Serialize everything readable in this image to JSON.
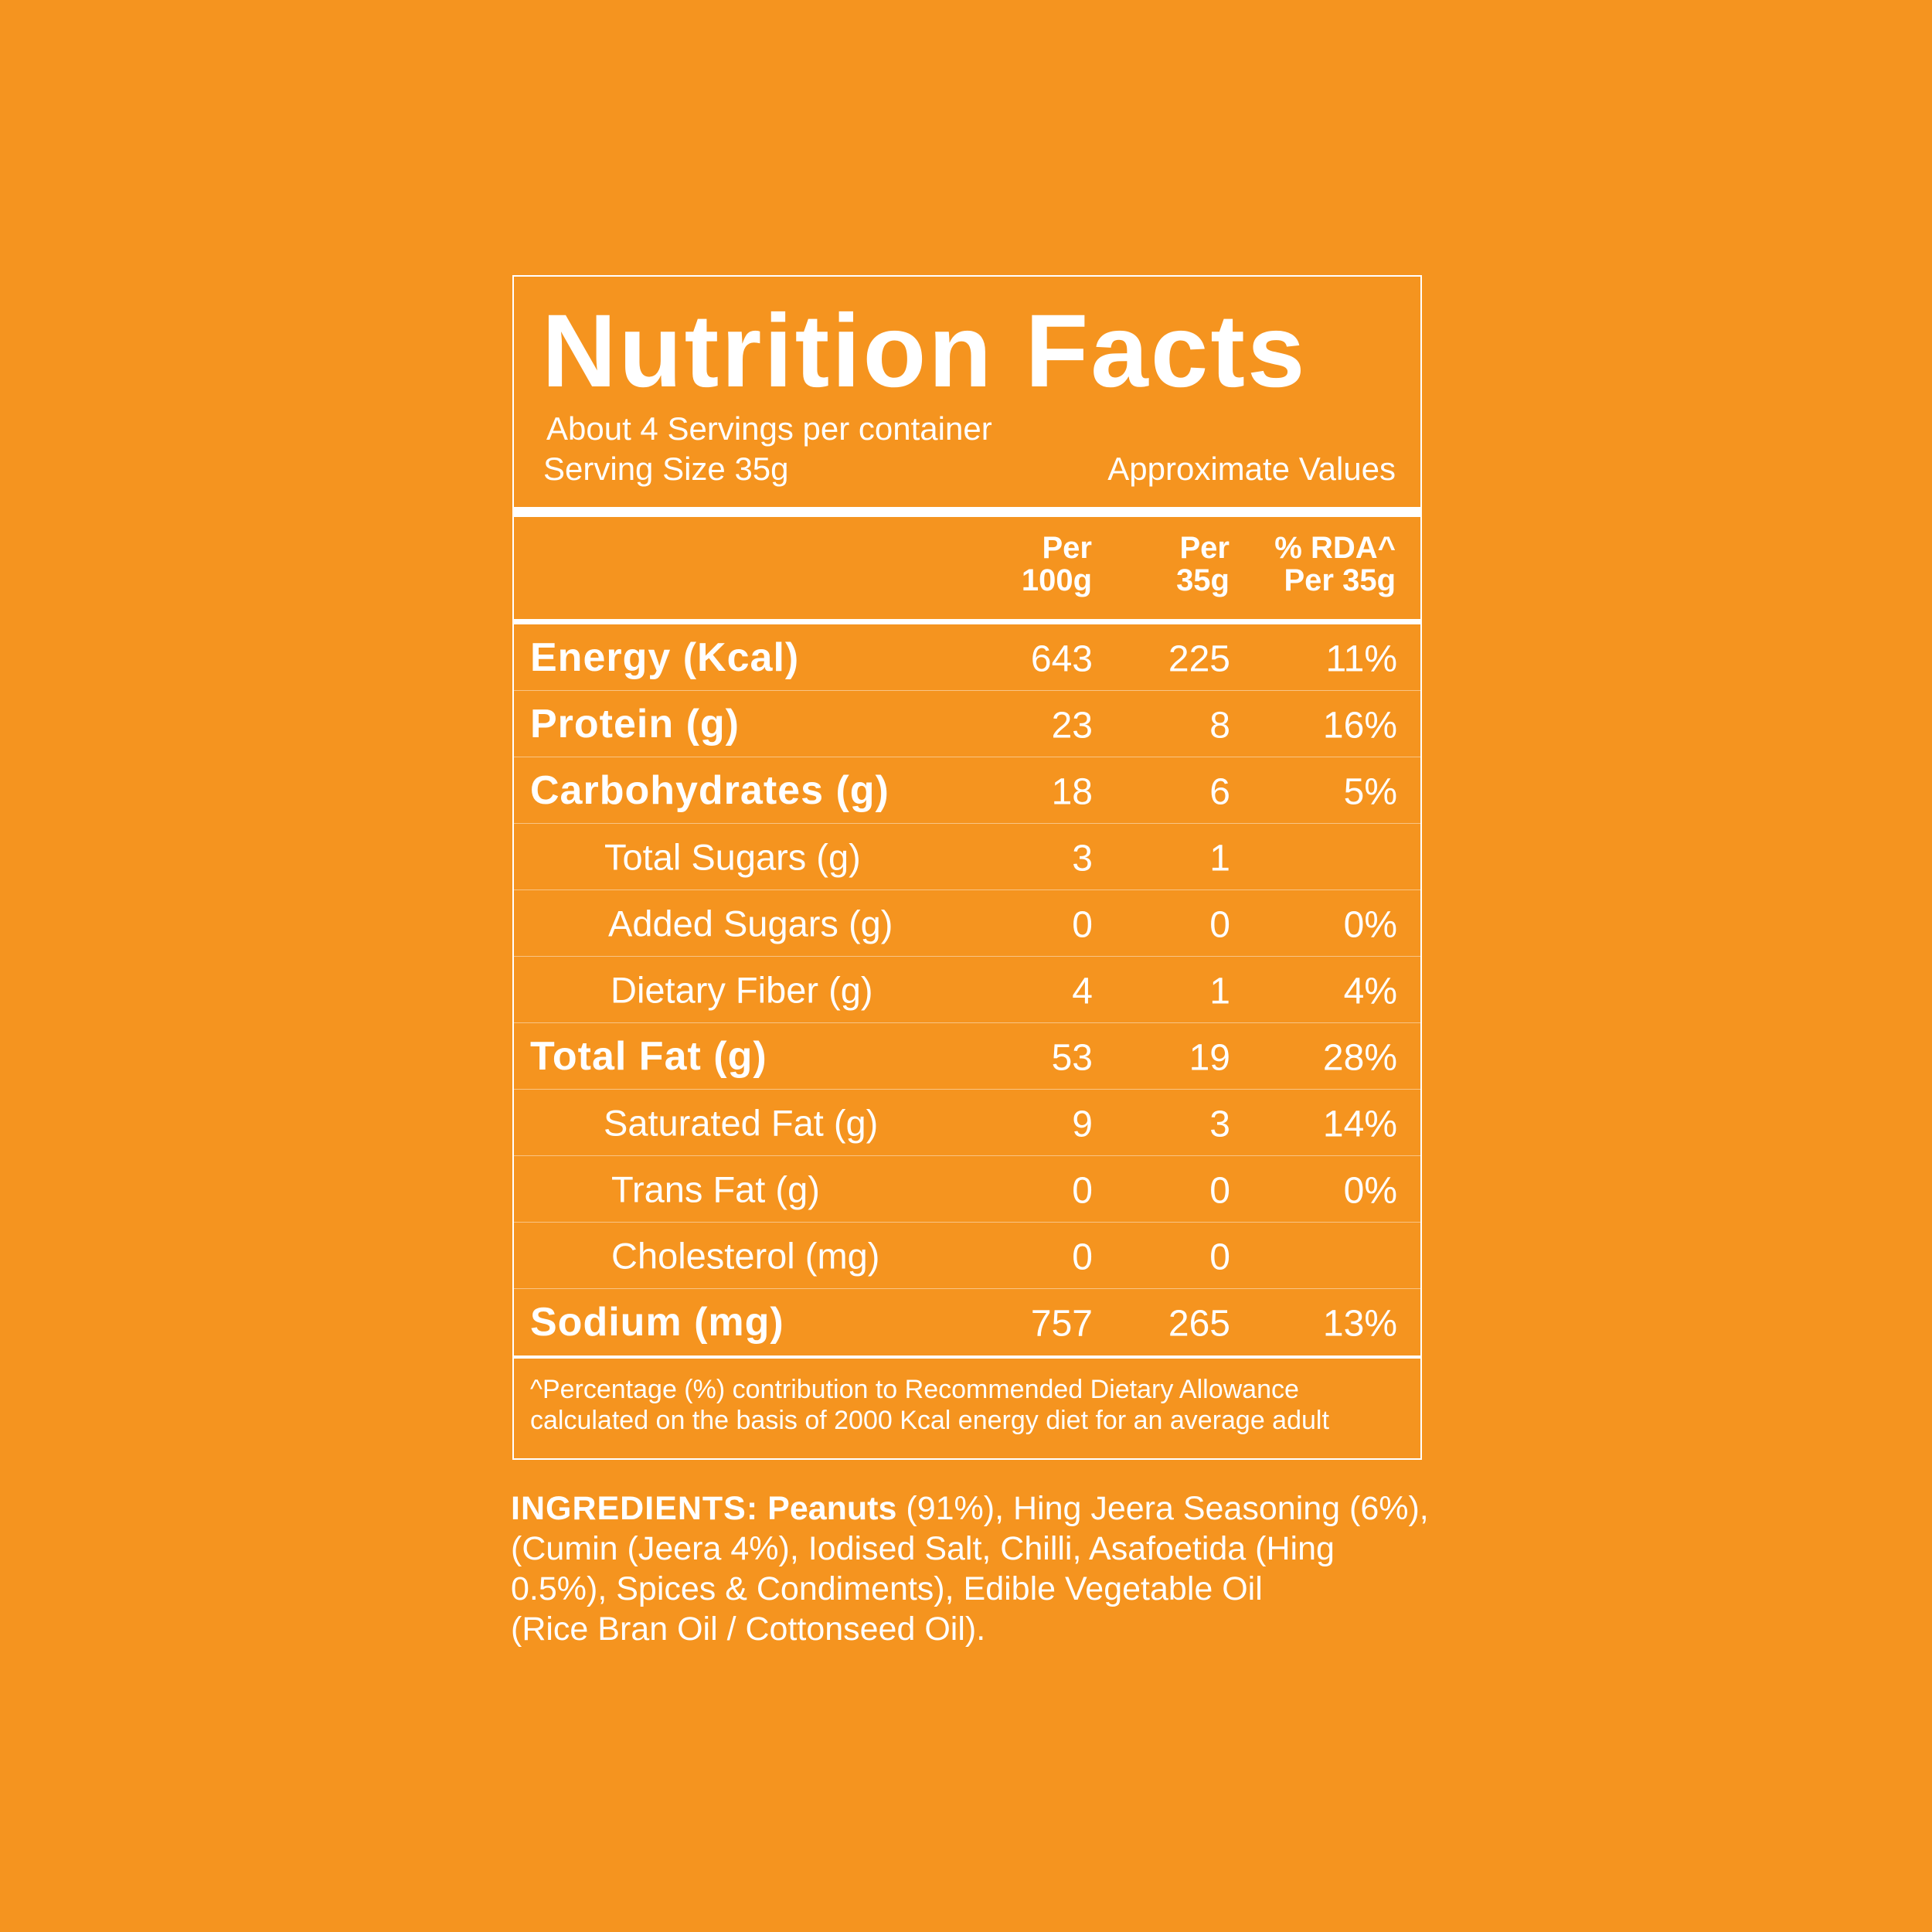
{
  "header": {
    "title": "Nutrition Facts",
    "servings_per_container": "About 4 Servings per container",
    "serving_size": "Serving Size 35g",
    "approximate": "Approximate Values"
  },
  "columns": {
    "col1": [
      "Per",
      "100g"
    ],
    "col2": [
      "Per",
      "35g"
    ],
    "col3": [
      "% RDA^",
      "Per 35g"
    ]
  },
  "rows": [
    {
      "name": "Energy (Kcal)",
      "per100": "643",
      "per35": "225",
      "rda": "11%",
      "style": "bold"
    },
    {
      "name": "Protein (g)",
      "per100": "23",
      "per35": "8",
      "rda": "16%",
      "style": "bold"
    },
    {
      "name": "Carbohydrates (g)",
      "per100": "18",
      "per35": "6",
      "rda": "5%",
      "style": "bold"
    },
    {
      "name": "Total Sugars (g)",
      "per100": "3",
      "per35": "1",
      "rda": "",
      "style": "sub"
    },
    {
      "name": "Added Sugars (g)",
      "per100": "0",
      "per35": "0",
      "rda": "0%",
      "style": "sub"
    },
    {
      "name": "Dietary Fiber (g)",
      "per100": "4",
      "per35": "1",
      "rda": "4%",
      "style": "sub"
    },
    {
      "name": "Total Fat (g)",
      "per100": "53",
      "per35": "19",
      "rda": "28%",
      "style": "bold"
    },
    {
      "name": "Saturated Fat (g)",
      "per100": "9",
      "per35": "3",
      "rda": "14%",
      "style": "sub"
    },
    {
      "name": "Trans Fat (g)",
      "per100": "0",
      "per35": "0",
      "rda": "0%",
      "style": "sub"
    },
    {
      "name": "Cholesterol (mg)",
      "per100": "0",
      "per35": "0",
      "rda": "",
      "style": "sub"
    },
    {
      "name": "Sodium (mg)",
      "per100": "757",
      "per35": "265",
      "rda": "13%",
      "style": "bold"
    }
  ],
  "footnote": [
    "^Percentage (%) contribution to Recommended Dietary Allowance",
    "calculated on the basis of 2000 Kcal energy diet for an average adult"
  ],
  "ingredients": {
    "heading": "INGREDIENTS:",
    "first_item": "Peanuts",
    "line1_rest": " (91%), Hing Jeera Seasoning (6%),",
    "line2": "(Cumin (Jeera 4%), Iodised Salt, Chilli, Asafoetida (Hing",
    "line3": "0.5%), Spices & Condiments), Edible Vegetable Oil",
    "line4": "(Rice Bran Oil / Cottonseed Oil)."
  },
  "colors": {
    "background": "#f5941f",
    "text": "#ffffff"
  }
}
